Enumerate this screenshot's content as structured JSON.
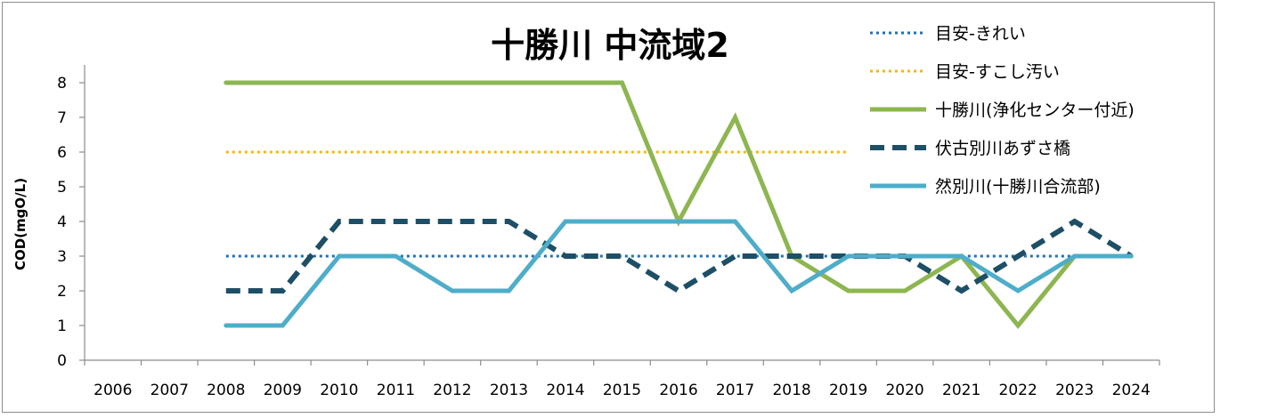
{
  "chart_data": {
    "type": "line",
    "title": "十勝川 中流域2",
    "xlabel": "",
    "ylabel": "COD(mgO/L)",
    "ylim": [
      0,
      8
    ],
    "yticks": [
      "0",
      "1",
      "2",
      "3",
      "4",
      "5",
      "6",
      "7",
      "8"
    ],
    "categories": [
      "2006",
      "2007",
      "2008",
      "2009",
      "2010",
      "2011",
      "2012",
      "2013",
      "2014",
      "2015",
      "2016",
      "2017",
      "2018",
      "2019",
      "2020",
      "2021",
      "2022",
      "2023",
      "2024"
    ],
    "grid": false,
    "legend_position": "top-right",
    "series": [
      {
        "name": "目安-きれい",
        "style": "dotted",
        "color": "#1f6fb5",
        "values": [
          null,
          null,
          3,
          3,
          3,
          3,
          3,
          3,
          3,
          3,
          3,
          3,
          3,
          3,
          3,
          3,
          3,
          3,
          3
        ]
      },
      {
        "name": "目安-すこし汚い",
        "style": "dotted",
        "color": "#f5b800",
        "values": [
          null,
          null,
          6,
          6,
          6,
          6,
          6,
          6,
          6,
          6,
          6,
          6,
          6,
          6,
          null,
          null,
          null,
          null,
          null
        ]
      },
      {
        "name": "十勝川(浄化センター付近)",
        "style": "solid",
        "color": "#8db650",
        "values": [
          null,
          null,
          8,
          8,
          8,
          8,
          8,
          8,
          8,
          8,
          4,
          7,
          3,
          2,
          2,
          3,
          1,
          3,
          3
        ]
      },
      {
        "name": "伏古別川あずさ橋",
        "style": "dashed",
        "color": "#1d4f66",
        "values": [
          null,
          null,
          2,
          2,
          4,
          4,
          4,
          4,
          3,
          3,
          2,
          3,
          3,
          3,
          3,
          2,
          3,
          4,
          3
        ]
      },
      {
        "name": "然別川(十勝川合流部)",
        "style": "solid",
        "color": "#4eadc9",
        "values": [
          null,
          null,
          1,
          1,
          3,
          3,
          2,
          2,
          4,
          4,
          4,
          4,
          2,
          3,
          3,
          3,
          2,
          3,
          3
        ]
      }
    ]
  }
}
